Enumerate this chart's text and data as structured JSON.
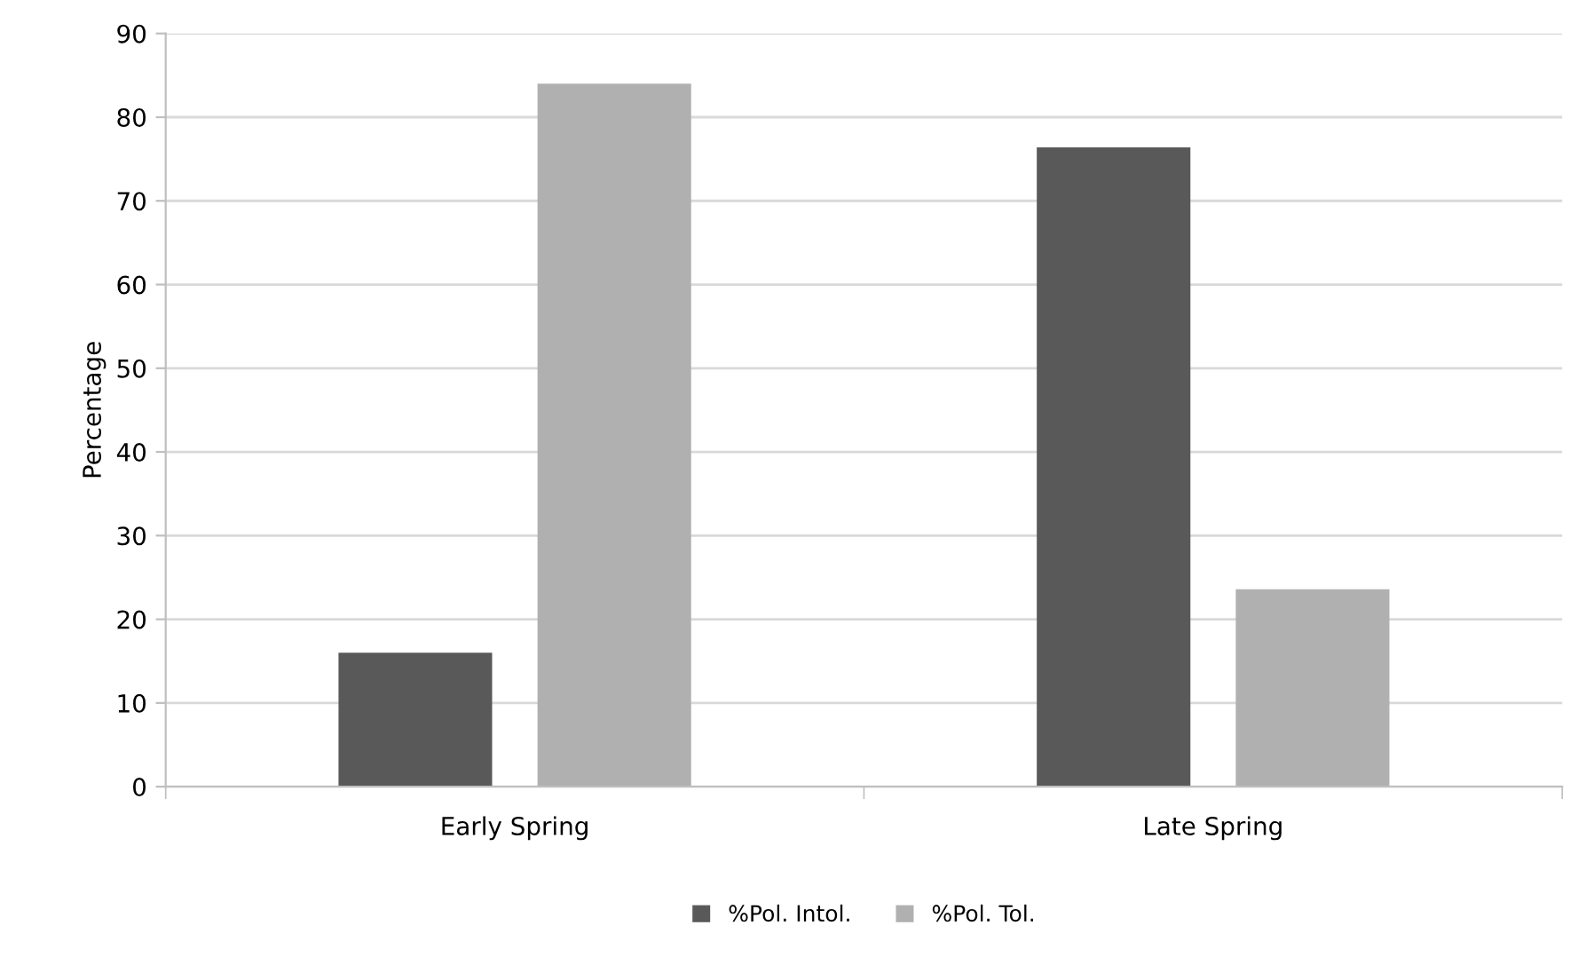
{
  "chart_data": {
    "type": "bar",
    "ylabel": "Percentage",
    "categories": [
      "Early Spring",
      "Late Spring"
    ],
    "series": [
      {
        "name": "%Pol. Intol.",
        "color": "#595959",
        "values": [
          16,
          76.4
        ]
      },
      {
        "name": "%Pol. Tol.",
        "color": "#b0b0b0",
        "values": [
          84,
          23.6
        ]
      }
    ],
    "ylim": [
      0,
      90
    ],
    "yticks": [
      0,
      10,
      20,
      30,
      40,
      50,
      60,
      70,
      80,
      90
    ],
    "grid": "y",
    "legend": "bottom"
  }
}
